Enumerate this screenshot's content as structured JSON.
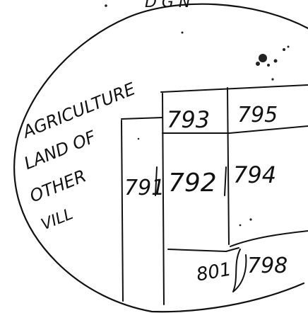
{
  "header": {
    "text": "D G N"
  },
  "side_label": {
    "lines": [
      "AGRICULTURE",
      "LAND OF",
      "OTHER",
      "VILL"
    ]
  },
  "plots": {
    "p791": "791",
    "p792": "792",
    "p793": "793",
    "p794": "794",
    "p795": "795",
    "p798": "798",
    "p801": "801"
  },
  "colors": {
    "ink": "#111111",
    "paper": "#ffffff"
  }
}
